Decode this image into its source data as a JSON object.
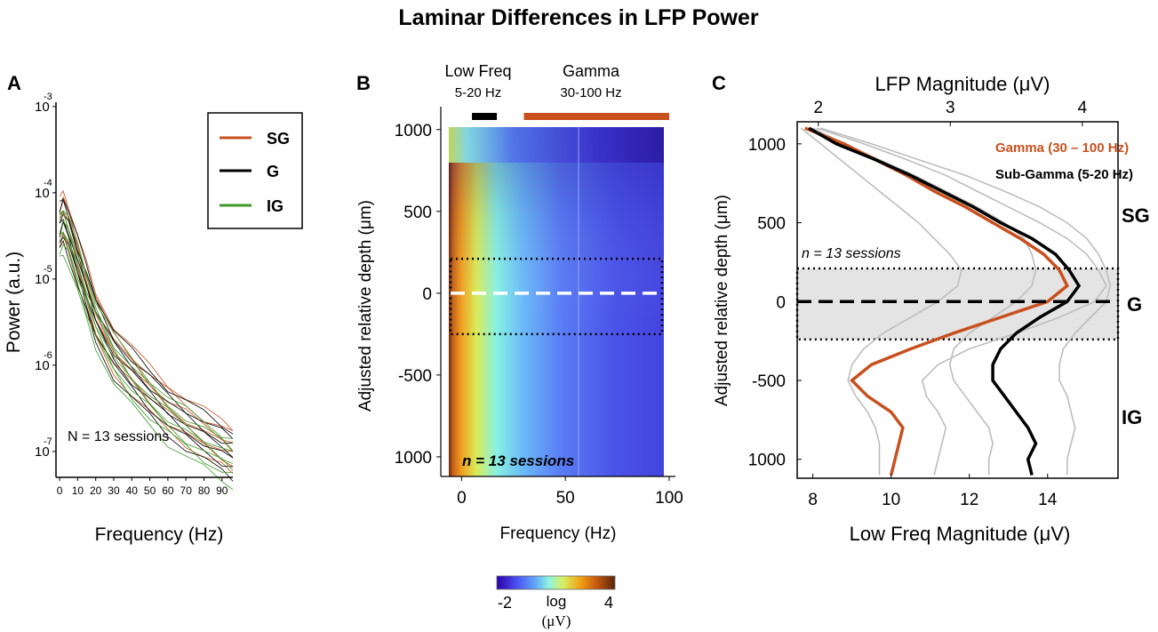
{
  "figure_title": "Laminar Differences in LFP Power",
  "colors": {
    "sg": "#c8501e",
    "g": "#000000",
    "ig": "#3c9a28",
    "trace": "#bdbdbd"
  },
  "chart_data": [
    {
      "panel": "A",
      "type": "line",
      "title": "",
      "xlabel": "Frequency (Hz)",
      "ylabel": "Power (a.u.)",
      "xlim": [
        -2,
        96
      ],
      "x_ticks": [
        0,
        10,
        20,
        30,
        40,
        50,
        60,
        70,
        80,
        90
      ],
      "y_scale": "log",
      "ylim_exp": [
        -7.3,
        -2.95
      ],
      "y_ticks": [
        {
          "base": "10",
          "exp": "-3",
          "value_exp": -3
        },
        {
          "base": "10",
          "exp": "-4",
          "value_exp": -4
        },
        {
          "base": "10",
          "exp": "-5",
          "value_exp": -5
        },
        {
          "base": "10",
          "exp": "-6",
          "value_exp": -6
        },
        {
          "base": "10",
          "exp": "-7",
          "value_exp": -7
        }
      ],
      "legend": [
        {
          "label": "SG",
          "color": "#c8501e"
        },
        {
          "label": "G",
          "color": "#000000"
        },
        {
          "label": "IG",
          "color": "#3c9a28"
        }
      ],
      "annotation": "N = 13 sessions",
      "x": [
        0,
        2,
        5,
        10,
        15,
        20,
        30,
        40,
        50,
        60,
        70,
        80,
        90,
        96
      ],
      "series": [
        {
          "name": "SG",
          "log10_values": [
            -4.35,
            -4.25,
            -4.4,
            -4.75,
            -5.1,
            -5.42,
            -5.8,
            -6.05,
            -6.28,
            -6.48,
            -6.63,
            -6.78,
            -6.9,
            -6.97
          ]
        },
        {
          "name": "G",
          "log10_values": [
            -4.4,
            -4.3,
            -4.45,
            -4.8,
            -5.12,
            -5.45,
            -5.85,
            -6.1,
            -6.32,
            -6.52,
            -6.68,
            -6.82,
            -6.95,
            -7.02
          ]
        },
        {
          "name": "IG",
          "log10_values": [
            -4.5,
            -4.42,
            -4.55,
            -4.88,
            -5.2,
            -5.5,
            -5.92,
            -6.2,
            -6.42,
            -6.62,
            -6.78,
            -6.92,
            -7.05,
            -7.12
          ]
        }
      ]
    },
    {
      "panel": "B",
      "type": "heatmap",
      "title": "",
      "xlabel": "Frequency (Hz)",
      "ylabel": "Adjusted relative depth (μm)",
      "xlim": [
        -10,
        103
      ],
      "ylim": [
        -1120,
        1140
      ],
      "x_ticks": [
        0,
        50,
        100
      ],
      "y_ticks": [
        {
          "label": "1000",
          "value": 1000
        },
        {
          "label": "500",
          "value": 500
        },
        {
          "label": "0",
          "value": 0
        },
        {
          "label": "-500",
          "value": -500
        },
        {
          "label": "1000",
          "value": -1000
        }
      ],
      "bands": [
        {
          "label": "Low Freq",
          "range_label": "5-20 Hz",
          "from": 5,
          "to": 17,
          "color": "#000000"
        },
        {
          "label": "Gamma",
          "range_label": "30-100 Hz",
          "from": 30,
          "to": 100,
          "color": "#c8501e"
        }
      ],
      "granular_box": [
        -250,
        210
      ],
      "center_line": 0,
      "annotation": "n = 13 sessions",
      "colorbar": {
        "min_label": "-2",
        "max_label": "4",
        "unit_label": "log",
        "unit_label2": "(μV)"
      }
    },
    {
      "panel": "C",
      "type": "line",
      "title": "",
      "xlabel": "Low Freq Magnitude (μV)",
      "x2label": "LFP Magnitude (μV)",
      "ylabel": "Adjusted relative depth (μm)",
      "xlim": [
        7.6,
        15.8
      ],
      "x_ticks": [
        8,
        10,
        12,
        14
      ],
      "x2lim": [
        1.84,
        4.27
      ],
      "x2_ticks": [
        2,
        3,
        4
      ],
      "ylim": [
        -1120,
        1140
      ],
      "y_ticks": [
        {
          "label": "1000",
          "value": 1000
        },
        {
          "label": "500",
          "value": 500
        },
        {
          "label": "0",
          "value": 0
        },
        {
          "label": "-500",
          "value": -500
        },
        {
          "label": "1000",
          "value": -1000
        }
      ],
      "legend": [
        {
          "label": "Gamma (30 – 100 Hz)",
          "color": "#c8501e"
        },
        {
          "label": "Sub-Gamma (5-20 Hz)",
          "color": "#000000"
        }
      ],
      "layer_labels": [
        {
          "label": "SG",
          "depth": 550
        },
        {
          "label": "G",
          "depth": 0
        },
        {
          "label": "IG",
          "depth": -700
        }
      ],
      "granular_box": [
        -240,
        210
      ],
      "center_line": 0,
      "annotation": "n = 13 sessions",
      "depth": [
        1100,
        1000,
        900,
        800,
        700,
        600,
        500,
        400,
        300,
        200,
        100,
        0,
        -100,
        -200,
        -300,
        -400,
        -500,
        -600,
        -700,
        -800,
        -900,
        -1000,
        -1100
      ],
      "series": [
        {
          "name": "Gamma (30 – 100 Hz)",
          "axis": "bottom",
          "values": [
            7.8,
            8.8,
            9.6,
            10.4,
            11.1,
            11.9,
            12.6,
            13.3,
            13.9,
            14.3,
            14.5,
            14.0,
            12.8,
            11.6,
            10.5,
            9.5,
            9.0,
            9.4,
            10.0,
            10.3,
            10.2,
            10.1,
            10.0
          ]
        },
        {
          "name": "Sub-Gamma (5-20 Hz)",
          "axis": "bottom",
          "values": [
            7.9,
            8.6,
            9.6,
            10.5,
            11.3,
            12.1,
            12.8,
            13.6,
            14.2,
            14.55,
            14.8,
            14.5,
            13.8,
            13.2,
            12.8,
            12.6,
            12.6,
            12.9,
            13.2,
            13.5,
            13.7,
            13.5,
            13.6
          ]
        }
      ],
      "gray_traces": [
        [
          7.7,
          8.2,
          8.7,
          9.2,
          9.7,
          10.2,
          10.7,
          11.1,
          11.5,
          11.8,
          11.7,
          11.2,
          10.5,
          9.8,
          9.3,
          9.0,
          8.9,
          9.1,
          9.4,
          9.6,
          9.7,
          9.7,
          9.7
        ],
        [
          8.1,
          9.3,
          10.4,
          11.4,
          12.2,
          13.0,
          13.8,
          14.5,
          15.0,
          15.3,
          15.5,
          15.2,
          14.3,
          13.2,
          12.0,
          11.2,
          10.8,
          10.9,
          11.2,
          11.4,
          11.3,
          11.2,
          11.1
        ],
        [
          8.0,
          8.8,
          9.7,
          10.6,
          11.4,
          12.2,
          12.9,
          13.4,
          13.6,
          13.7,
          13.6,
          13.2,
          12.6,
          12.0,
          11.6,
          11.5,
          11.6,
          11.9,
          12.2,
          12.5,
          12.6,
          12.5,
          12.5
        ],
        [
          8.2,
          9.5,
          10.7,
          11.9,
          12.9,
          13.8,
          14.5,
          15.0,
          15.3,
          15.5,
          15.6,
          15.5,
          15.1,
          14.7,
          14.4,
          14.3,
          14.3,
          14.5,
          14.6,
          14.7,
          14.6,
          14.5,
          14.5
        ]
      ]
    }
  ],
  "panel_labels": [
    "A",
    "B",
    "C"
  ]
}
